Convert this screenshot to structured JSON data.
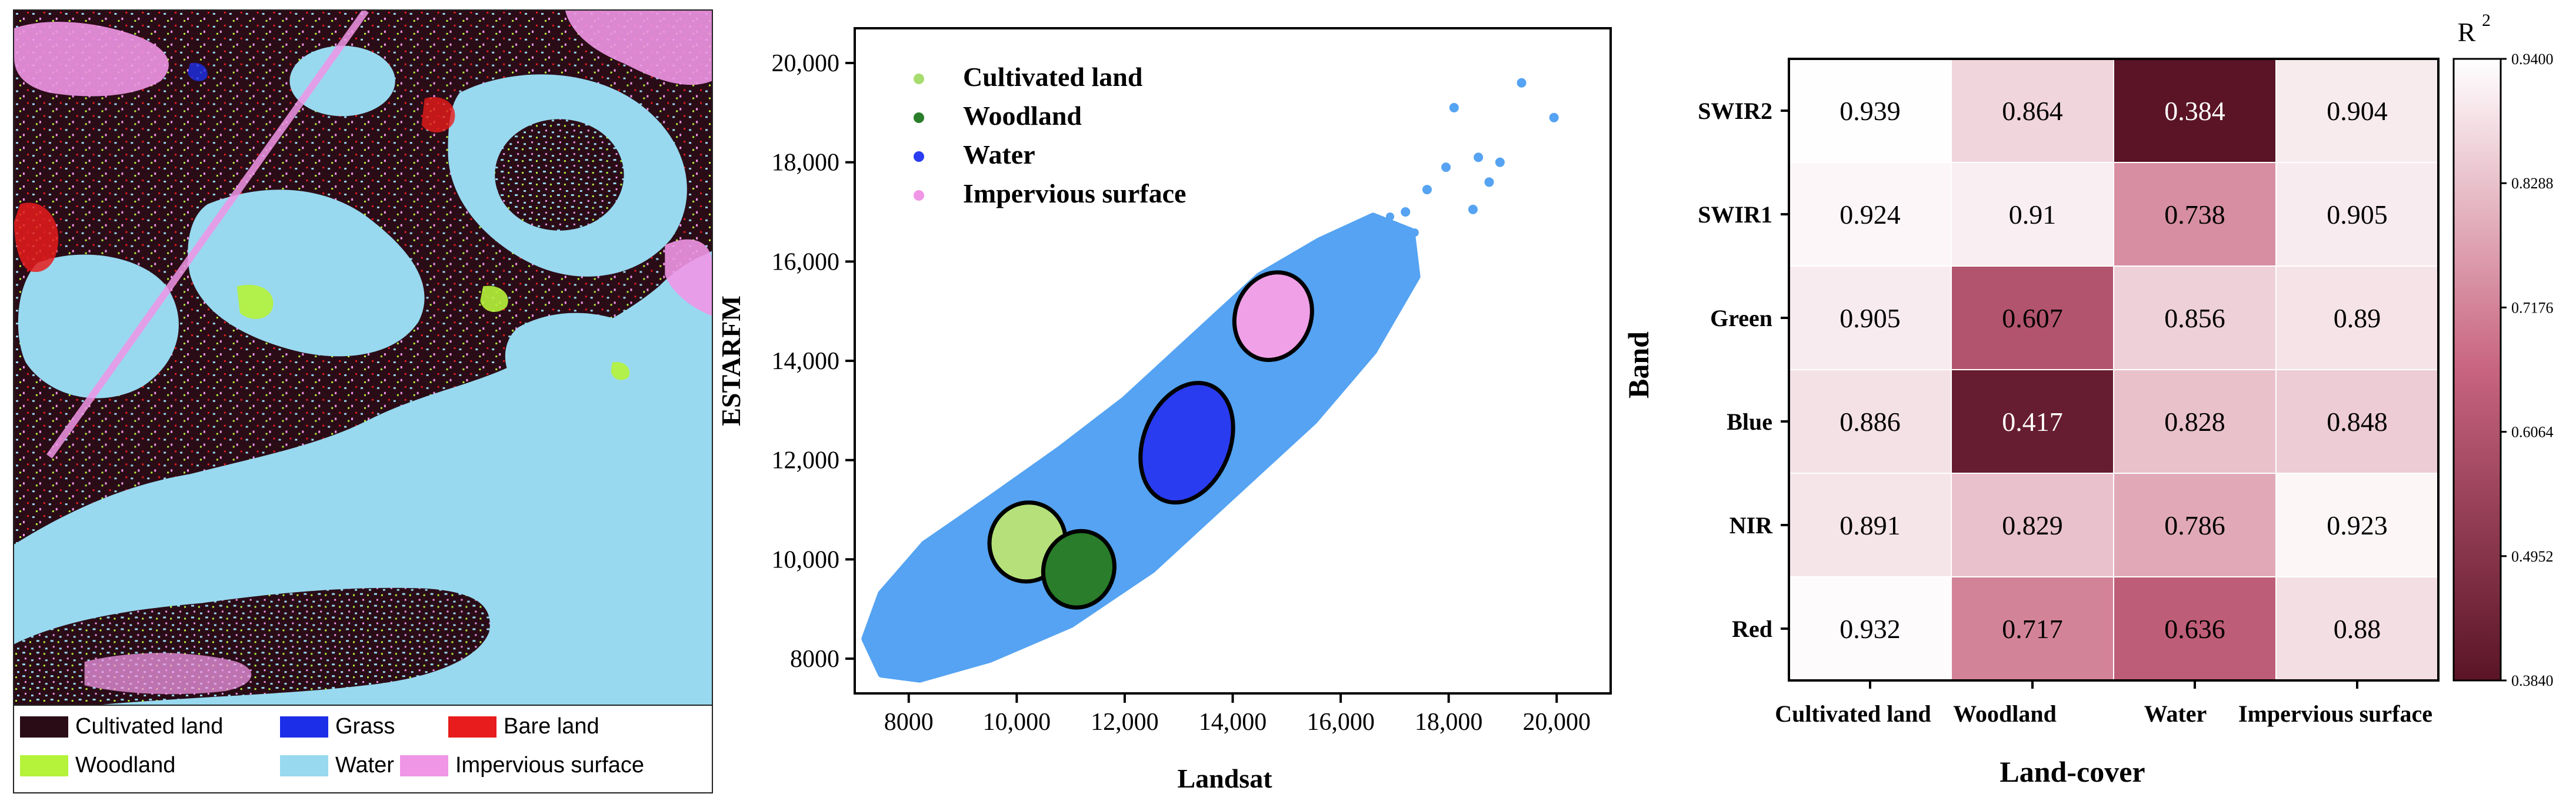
{
  "map_panel": {
    "legend": [
      {
        "label": "Cultivated land",
        "color": "#2a0c17"
      },
      {
        "label": "Grass",
        "color": "#1c2ee8"
      },
      {
        "label": "Bare land",
        "color": "#e81c1c"
      },
      {
        "label": "Woodland",
        "color": "#b5f23a"
      },
      {
        "label": "Water",
        "color": "#98d9ef"
      },
      {
        "label": "Impervious surface",
        "color": "#f096e6"
      }
    ]
  },
  "chart_data": [
    {
      "type": "scatter",
      "title": "",
      "xlabel": "Landsat",
      "ylabel": "ESTARFM",
      "xlim": [
        7000,
        21000
      ],
      "ylim": [
        7300,
        20700
      ],
      "xticks": [
        8000,
        10000,
        12000,
        14000,
        16000,
        18000,
        20000
      ],
      "xtick_labels": [
        "8000",
        "10,000",
        "12,000",
        "14,000",
        "16,000",
        "18,000",
        "20,000"
      ],
      "yticks": [
        8000,
        10000,
        12000,
        14000,
        16000,
        18000,
        20000
      ],
      "ytick_labels": [
        "8000",
        "10,000",
        "12,000",
        "14,000",
        "16,000",
        "18,000",
        "20,000"
      ],
      "point_color": "#55a3f2",
      "outlier_points": [
        {
          "x": 19350,
          "y": 19600
        },
        {
          "x": 19950,
          "y": 18900
        },
        {
          "x": 18100,
          "y": 19100
        },
        {
          "x": 18550,
          "y": 18100
        },
        {
          "x": 18950,
          "y": 18000
        },
        {
          "x": 18750,
          "y": 17600
        },
        {
          "x": 18450,
          "y": 17050
        },
        {
          "x": 17950,
          "y": 17900
        },
        {
          "x": 17200,
          "y": 17000
        },
        {
          "x": 16950,
          "y": 16400
        },
        {
          "x": 17600,
          "y": 17450
        },
        {
          "x": 16800,
          "y": 15550
        },
        {
          "x": 17100,
          "y": 15300
        },
        {
          "x": 16450,
          "y": 14850
        },
        {
          "x": 7700,
          "y": 7950
        },
        {
          "x": 7600,
          "y": 8250
        }
      ],
      "cluster_ellipses": [
        {
          "name": "Cultivated land",
          "color": "#b5e07a",
          "cx": 10200,
          "cy": 10350,
          "rx": 700,
          "ry": 800
        },
        {
          "name": "Woodland",
          "color": "#2a7d2a",
          "cx": 11150,
          "cy": 9800,
          "rx": 650,
          "ry": 780
        },
        {
          "name": "Water",
          "color": "#2a3cf0",
          "cx": 13150,
          "cy": 12350,
          "rx": 800,
          "ry": 1250
        },
        {
          "name": "Impervious surface",
          "color": "#f0a0e6",
          "cx": 14750,
          "cy": 14900,
          "rx": 700,
          "ry": 900
        }
      ],
      "legend": [
        {
          "label": "Cultivated land",
          "color": "#a7dc6e"
        },
        {
          "label": "Woodland",
          "color": "#2a7d2a"
        },
        {
          "label": "Water",
          "color": "#2a3cf0"
        },
        {
          "label": "Impervious surface",
          "color": "#f096e6"
        }
      ]
    },
    {
      "type": "heatmap",
      "title": "",
      "xlabel": "Land-cover",
      "ylabel": "Band",
      "columns": [
        "Cultivated land",
        "Woodland",
        "Water",
        "Impervious surface"
      ],
      "rows": [
        "SWIR2",
        "SWIR1",
        "Green",
        "Blue",
        "NIR",
        "Red"
      ],
      "values": [
        [
          "0.939",
          "0.864",
          "0.384",
          "0.904"
        ],
        [
          "0.924",
          "0.91",
          "0.738",
          "0.905"
        ],
        [
          "0.905",
          "0.607",
          "0.856",
          "0.89"
        ],
        [
          "0.886",
          "0.417",
          "0.828",
          "0.848"
        ],
        [
          "0.891",
          "0.829",
          "0.786",
          "0.923"
        ],
        [
          "0.932",
          "0.717",
          "0.636",
          "0.88"
        ]
      ],
      "colorbar": {
        "label": "R",
        "label_superscript": "2",
        "min": 0.384,
        "max": 0.94,
        "tick_labels": [
          "0.9400",
          "0.8288",
          "0.7176",
          "0.6064",
          "0.4952",
          "0.3840"
        ],
        "color_low": "#5a1426",
        "color_mid": "#c8647f",
        "color_high": "#ffffff"
      }
    }
  ]
}
